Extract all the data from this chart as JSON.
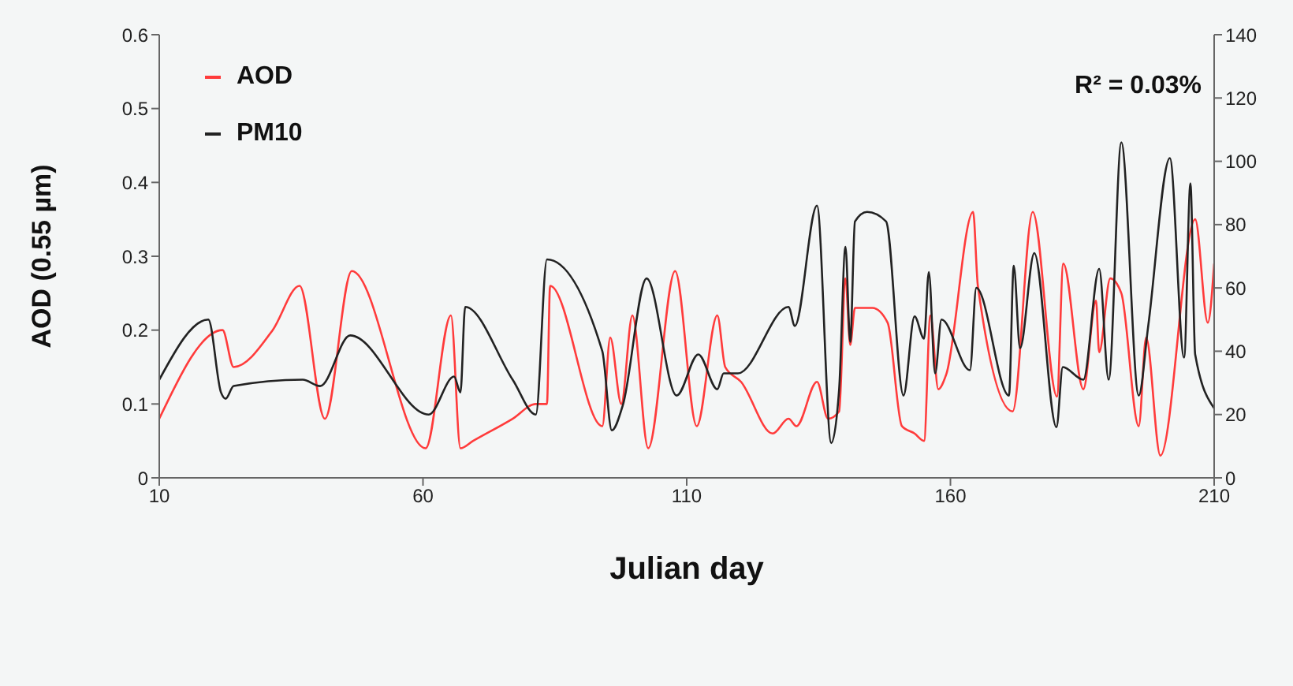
{
  "chart_data": {
    "type": "line",
    "xlabel": "Julian day",
    "ylabel": "AOD (0.55 µm)",
    "annotations": [
      "R² = 0.03%"
    ],
    "xlim": [
      10,
      210
    ],
    "xticks": [
      10,
      60,
      110,
      160,
      210
    ],
    "ylim": [
      0,
      0.6
    ],
    "yticks": [
      0,
      0.1,
      0.2,
      0.3,
      0.4,
      0.5,
      0.6
    ],
    "y2lim": [
      0,
      140
    ],
    "y2ticks": [
      0,
      20,
      40,
      60,
      80,
      100,
      120,
      140
    ],
    "legend": "top left",
    "marker": "none",
    "line_style": "solid",
    "series": [
      {
        "name": "AOD",
        "color": "#ff3b3b",
        "x": [
          10,
          22.0,
          24.1,
          31.5,
          36.6,
          41.4,
          46.5,
          60.5,
          65.3,
          67.1,
          69.5,
          77.0,
          81.4,
          83.5,
          84.1,
          94.0,
          95.5,
          97.6,
          99.7,
          102.7,
          107.8,
          111.9,
          115.8,
          117.3,
          120.3,
          126.3,
          129.3,
          130.8,
          134.7,
          136.8,
          138.9,
          140.1,
          141.0,
          141.9,
          145.2,
          148.1,
          150.8,
          153.2,
          155.0,
          156.2,
          157.7,
          159.2,
          164.3,
          165.2,
          171.8,
          175.6,
          180.2,
          181.4,
          185.2,
          187.6,
          188.2,
          190.3,
          192.4,
          195.7,
          197.1,
          199.8,
          206.4,
          208.8,
          210
        ],
        "values": [
          0.08,
          0.2,
          0.15,
          0.2,
          0.26,
          0.08,
          0.28,
          0.04,
          0.22,
          0.04,
          0.05,
          0.08,
          0.1,
          0.1,
          0.26,
          0.07,
          0.19,
          0.1,
          0.22,
          0.04,
          0.28,
          0.07,
          0.22,
          0.15,
          0.13,
          0.06,
          0.08,
          0.07,
          0.13,
          0.08,
          0.09,
          0.27,
          0.18,
          0.23,
          0.23,
          0.21,
          0.07,
          0.06,
          0.05,
          0.22,
          0.12,
          0.14,
          0.36,
          0.26,
          0.09,
          0.36,
          0.11,
          0.29,
          0.12,
          0.24,
          0.17,
          0.27,
          0.25,
          0.07,
          0.19,
          0.03,
          0.35,
          0.21,
          0.29
        ]
      },
      {
        "name": "PM10",
        "color": "#222222",
        "axis": "y2",
        "x": [
          10,
          19.3,
          21.7,
          22.6,
          24.1,
          37.2,
          40.5,
          46.2,
          61.1,
          65.9,
          67.1,
          68.0,
          77.0,
          81.4,
          83.5,
          94.0,
          95.8,
          97.9,
          102.4,
          108.1,
          112.2,
          115.8,
          117.0,
          119.7,
          129.3,
          130.5,
          134.7,
          137.4,
          138.9,
          140.1,
          141.0,
          141.9,
          144.2,
          147.8,
          151.1,
          153.2,
          155.0,
          155.9,
          157.1,
          158.3,
          163.7,
          164.9,
          171.1,
          172.0,
          173.2,
          175.9,
          180.1,
          181.3,
          185.2,
          188.2,
          190.0,
          192.4,
          195.7,
          197.5,
          201.6,
          204.3,
          205.5,
          206.4,
          210
        ],
        "values": [
          31,
          50,
          27,
          25,
          29,
          31,
          29,
          45,
          20,
          32,
          27,
          54,
          31,
          20,
          69,
          40,
          15,
          23,
          63,
          26,
          39,
          28,
          33,
          33,
          54,
          48,
          86,
          11,
          28,
          73,
          43,
          81,
          84,
          81,
          26,
          51,
          44,
          65,
          33,
          50,
          34,
          60,
          26,
          67,
          41,
          71,
          16,
          35,
          31,
          66,
          31,
          106,
          26,
          48,
          101,
          38,
          93,
          39,
          22
        ]
      }
    ]
  }
}
